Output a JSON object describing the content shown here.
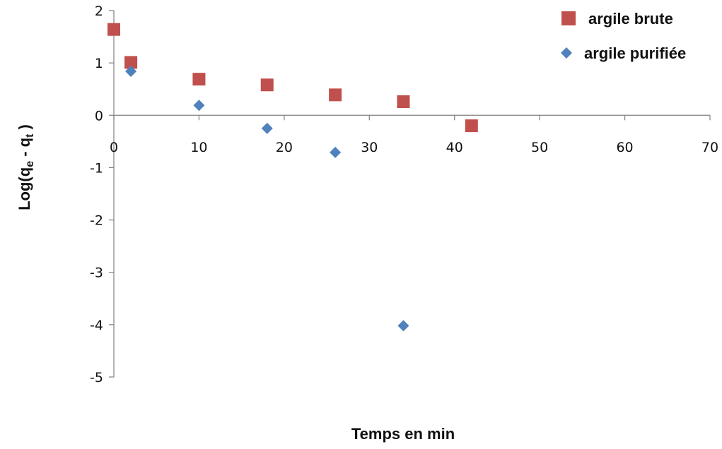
{
  "chart_data": {
    "type": "scatter",
    "xlabel": "Temps en min",
    "ylabel_main": "Log(q",
    "ylabel_sub1": "e",
    "ylabel_mid": " - q",
    "ylabel_sub2": "t",
    "ylabel_end": " )",
    "xlim": [
      0,
      70
    ],
    "ylim": [
      -5,
      2
    ],
    "xticks": [
      0,
      10,
      20,
      30,
      40,
      50,
      60,
      70
    ],
    "yticks": [
      2,
      1,
      0,
      -1,
      -2,
      -3,
      -4,
      -5
    ],
    "grid": false,
    "legend_position": "top-right",
    "series": [
      {
        "name": "argile brute",
        "marker": "square",
        "color": "#C0504D",
        "points": [
          [
            0,
            1.64
          ],
          [
            2,
            1.01
          ],
          [
            10,
            0.69
          ],
          [
            18,
            0.58
          ],
          [
            26,
            0.39
          ],
          [
            34,
            0.26
          ],
          [
            42,
            -0.2
          ]
        ]
      },
      {
        "name": "argile purifiée",
        "marker": "diamond",
        "color": "#4F81BD",
        "points": [
          [
            2,
            0.84
          ],
          [
            10,
            0.19
          ],
          [
            18,
            -0.25
          ],
          [
            26,
            -0.71
          ],
          [
            34,
            -4.02
          ]
        ]
      }
    ]
  }
}
